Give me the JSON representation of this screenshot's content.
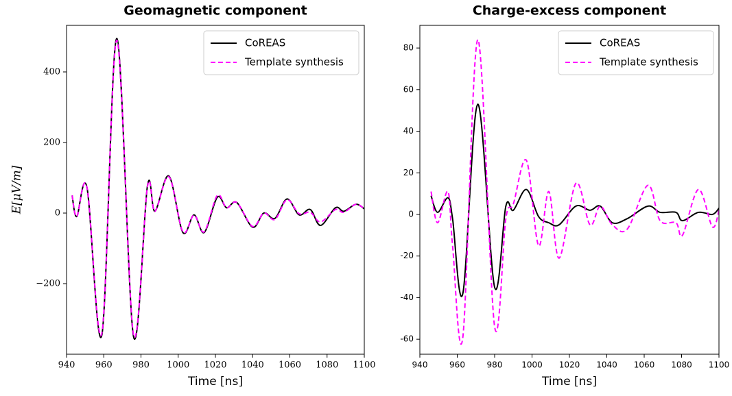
{
  "chart_data": [
    {
      "type": "line",
      "title": "Geomagnetic component",
      "xlabel": "Time [ns]",
      "ylabel": "E[μV/m]",
      "x": [
        943,
        945.5,
        951,
        959,
        967,
        976,
        983.5,
        987.5,
        995,
        1002.5,
        1008.5,
        1014,
        1021,
        1026,
        1031.5,
        1040,
        1046,
        1052,
        1058.5,
        1065,
        1071,
        1076.5,
        1084.5,
        1089,
        1095.5,
        1100
      ],
      "series": [
        {
          "name": "CoREAS",
          "color": "#000000",
          "dash": false,
          "values": [
            50,
            -10,
            72,
            -345,
            495,
            -350,
            78,
            5,
            105,
            -55,
            -5,
            -55,
            45,
            15,
            30,
            -40,
            0,
            -15,
            40,
            -5,
            10,
            -35,
            15,
            5,
            25,
            12
          ]
        },
        {
          "name": "Template synthesis",
          "color": "#ff00ff",
          "dash": true,
          "values": [
            50,
            -10,
            72,
            -340,
            490,
            -345,
            76,
            5,
            103,
            -53,
            -6,
            -53,
            50,
            15,
            30,
            -38,
            0,
            -18,
            38,
            -2,
            2,
            -25,
            10,
            2,
            25,
            12
          ]
        }
      ],
      "xlim": [
        940,
        1100
      ],
      "xticks": [
        940,
        960,
        980,
        1000,
        1020,
        1040,
        1060,
        1080,
        1100
      ],
      "ylim": [
        -400,
        532
      ],
      "yticks": [
        {
          "value": -200,
          "label": "−200"
        },
        0,
        200,
        400
      ],
      "legend": "upper right"
    },
    {
      "type": "line",
      "title": "Charge-excess component",
      "xlabel": "Time [ns]",
      "x": [
        946,
        949.5,
        955,
        957.5,
        963,
        971,
        980,
        986,
        990,
        997,
        1003.5,
        1009,
        1014.5,
        1023.5,
        1031,
        1036.5,
        1043,
        1051,
        1062,
        1068.5,
        1077,
        1080.5,
        1089,
        1096.5,
        1100
      ],
      "series": [
        {
          "name": "CoREAS",
          "color": "#000000",
          "dash": false,
          "values": [
            9,
            1,
            8,
            -2,
            -38,
            53,
            -35,
            4,
            2,
            12,
            -1,
            -4,
            -5,
            4,
            2,
            4,
            -4,
            -2,
            4,
            1,
            1,
            -3,
            1,
            0,
            3
          ]
        },
        {
          "name": "Template synthesis",
          "color": "#ff00ff",
          "dash": true,
          "values": [
            11,
            -4,
            11,
            -15,
            -59,
            84,
            -54,
            -2,
            5,
            26,
            -15,
            11,
            -21,
            15,
            -5,
            4,
            -5,
            -7,
            14,
            -3,
            -4,
            -10,
            12,
            -6,
            2
          ]
        }
      ],
      "xlim": [
        940,
        1100
      ],
      "xticks": [
        940,
        960,
        980,
        1000,
        1020,
        1040,
        1060,
        1080,
        1100
      ],
      "ylim": [
        -67.2,
        90.9
      ],
      "yticks": [
        -60,
        -40,
        -20,
        0,
        20,
        40,
        60,
        80
      ],
      "legend": "upper right"
    }
  ]
}
